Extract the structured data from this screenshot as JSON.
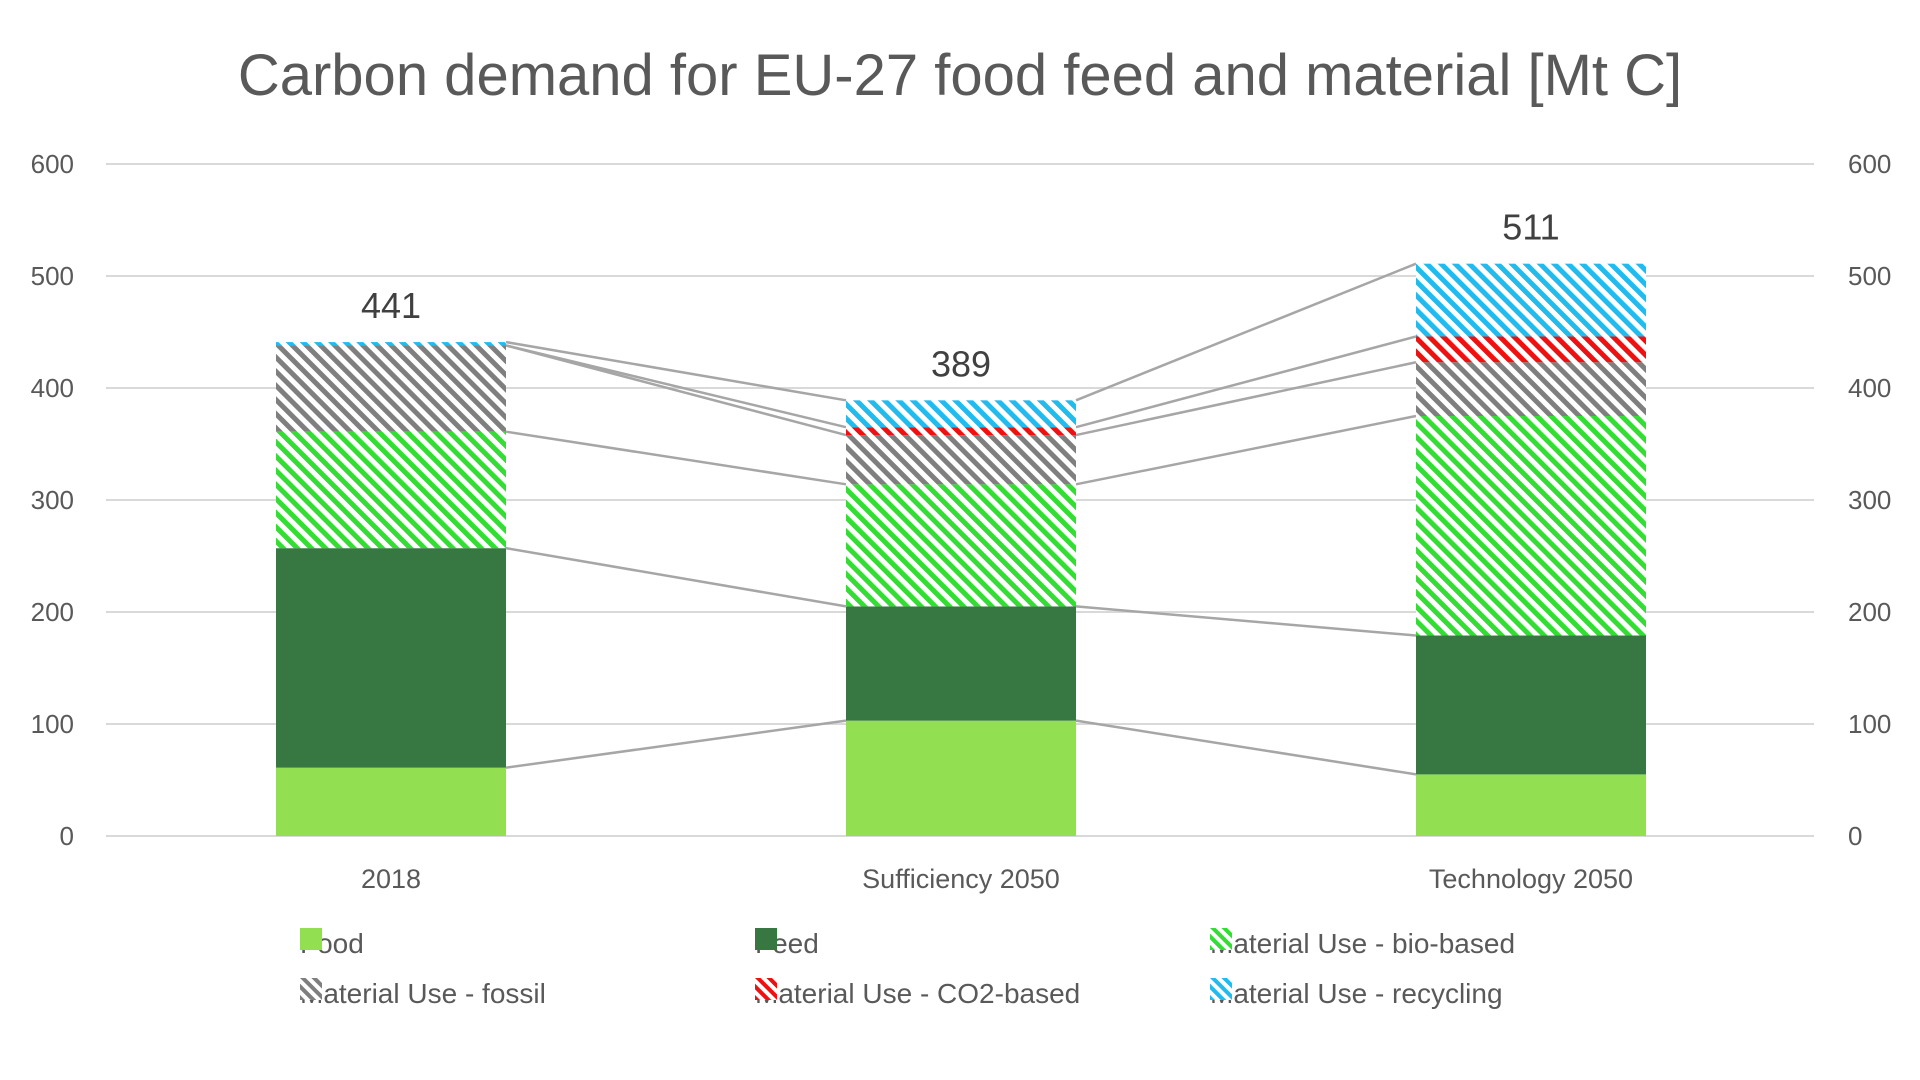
{
  "title": "Carbon demand for EU-27 food feed and material [Mt C]",
  "chart_data": {
    "type": "bar",
    "stacked": true,
    "categories": [
      "2018",
      "Sufficiency 2050",
      "Technology 2050"
    ],
    "series": [
      {
        "name": "Food",
        "values": [
          61,
          103,
          55
        ],
        "color": "#92e052",
        "pattern": "solid"
      },
      {
        "name": "Feed",
        "values": [
          196,
          102,
          124
        ],
        "color": "#377842",
        "pattern": "solid"
      },
      {
        "name": "Material Use - bio-based",
        "values": [
          104,
          109,
          196
        ],
        "color": "#33dd33",
        "pattern": "hatch"
      },
      {
        "name": "Material Use - fossil",
        "values": [
          77,
          44,
          48
        ],
        "color": "#7f7f7f",
        "pattern": "hatch"
      },
      {
        "name": "Material Use - CO2-based",
        "values": [
          0,
          7,
          23
        ],
        "color": "#ee1111",
        "pattern": "hatch"
      },
      {
        "name": "Material Use - recycling",
        "values": [
          3,
          24,
          65
        ],
        "color": "#22bbee",
        "pattern": "hatch"
      }
    ],
    "totals": [
      441,
      389,
      511
    ],
    "ylim": [
      0,
      600
    ],
    "yticks": [
      0,
      100,
      200,
      300,
      400,
      500,
      600
    ],
    "secondary_yaxis": true,
    "series_lines": true,
    "grid": true,
    "legend_position": "bottom"
  }
}
